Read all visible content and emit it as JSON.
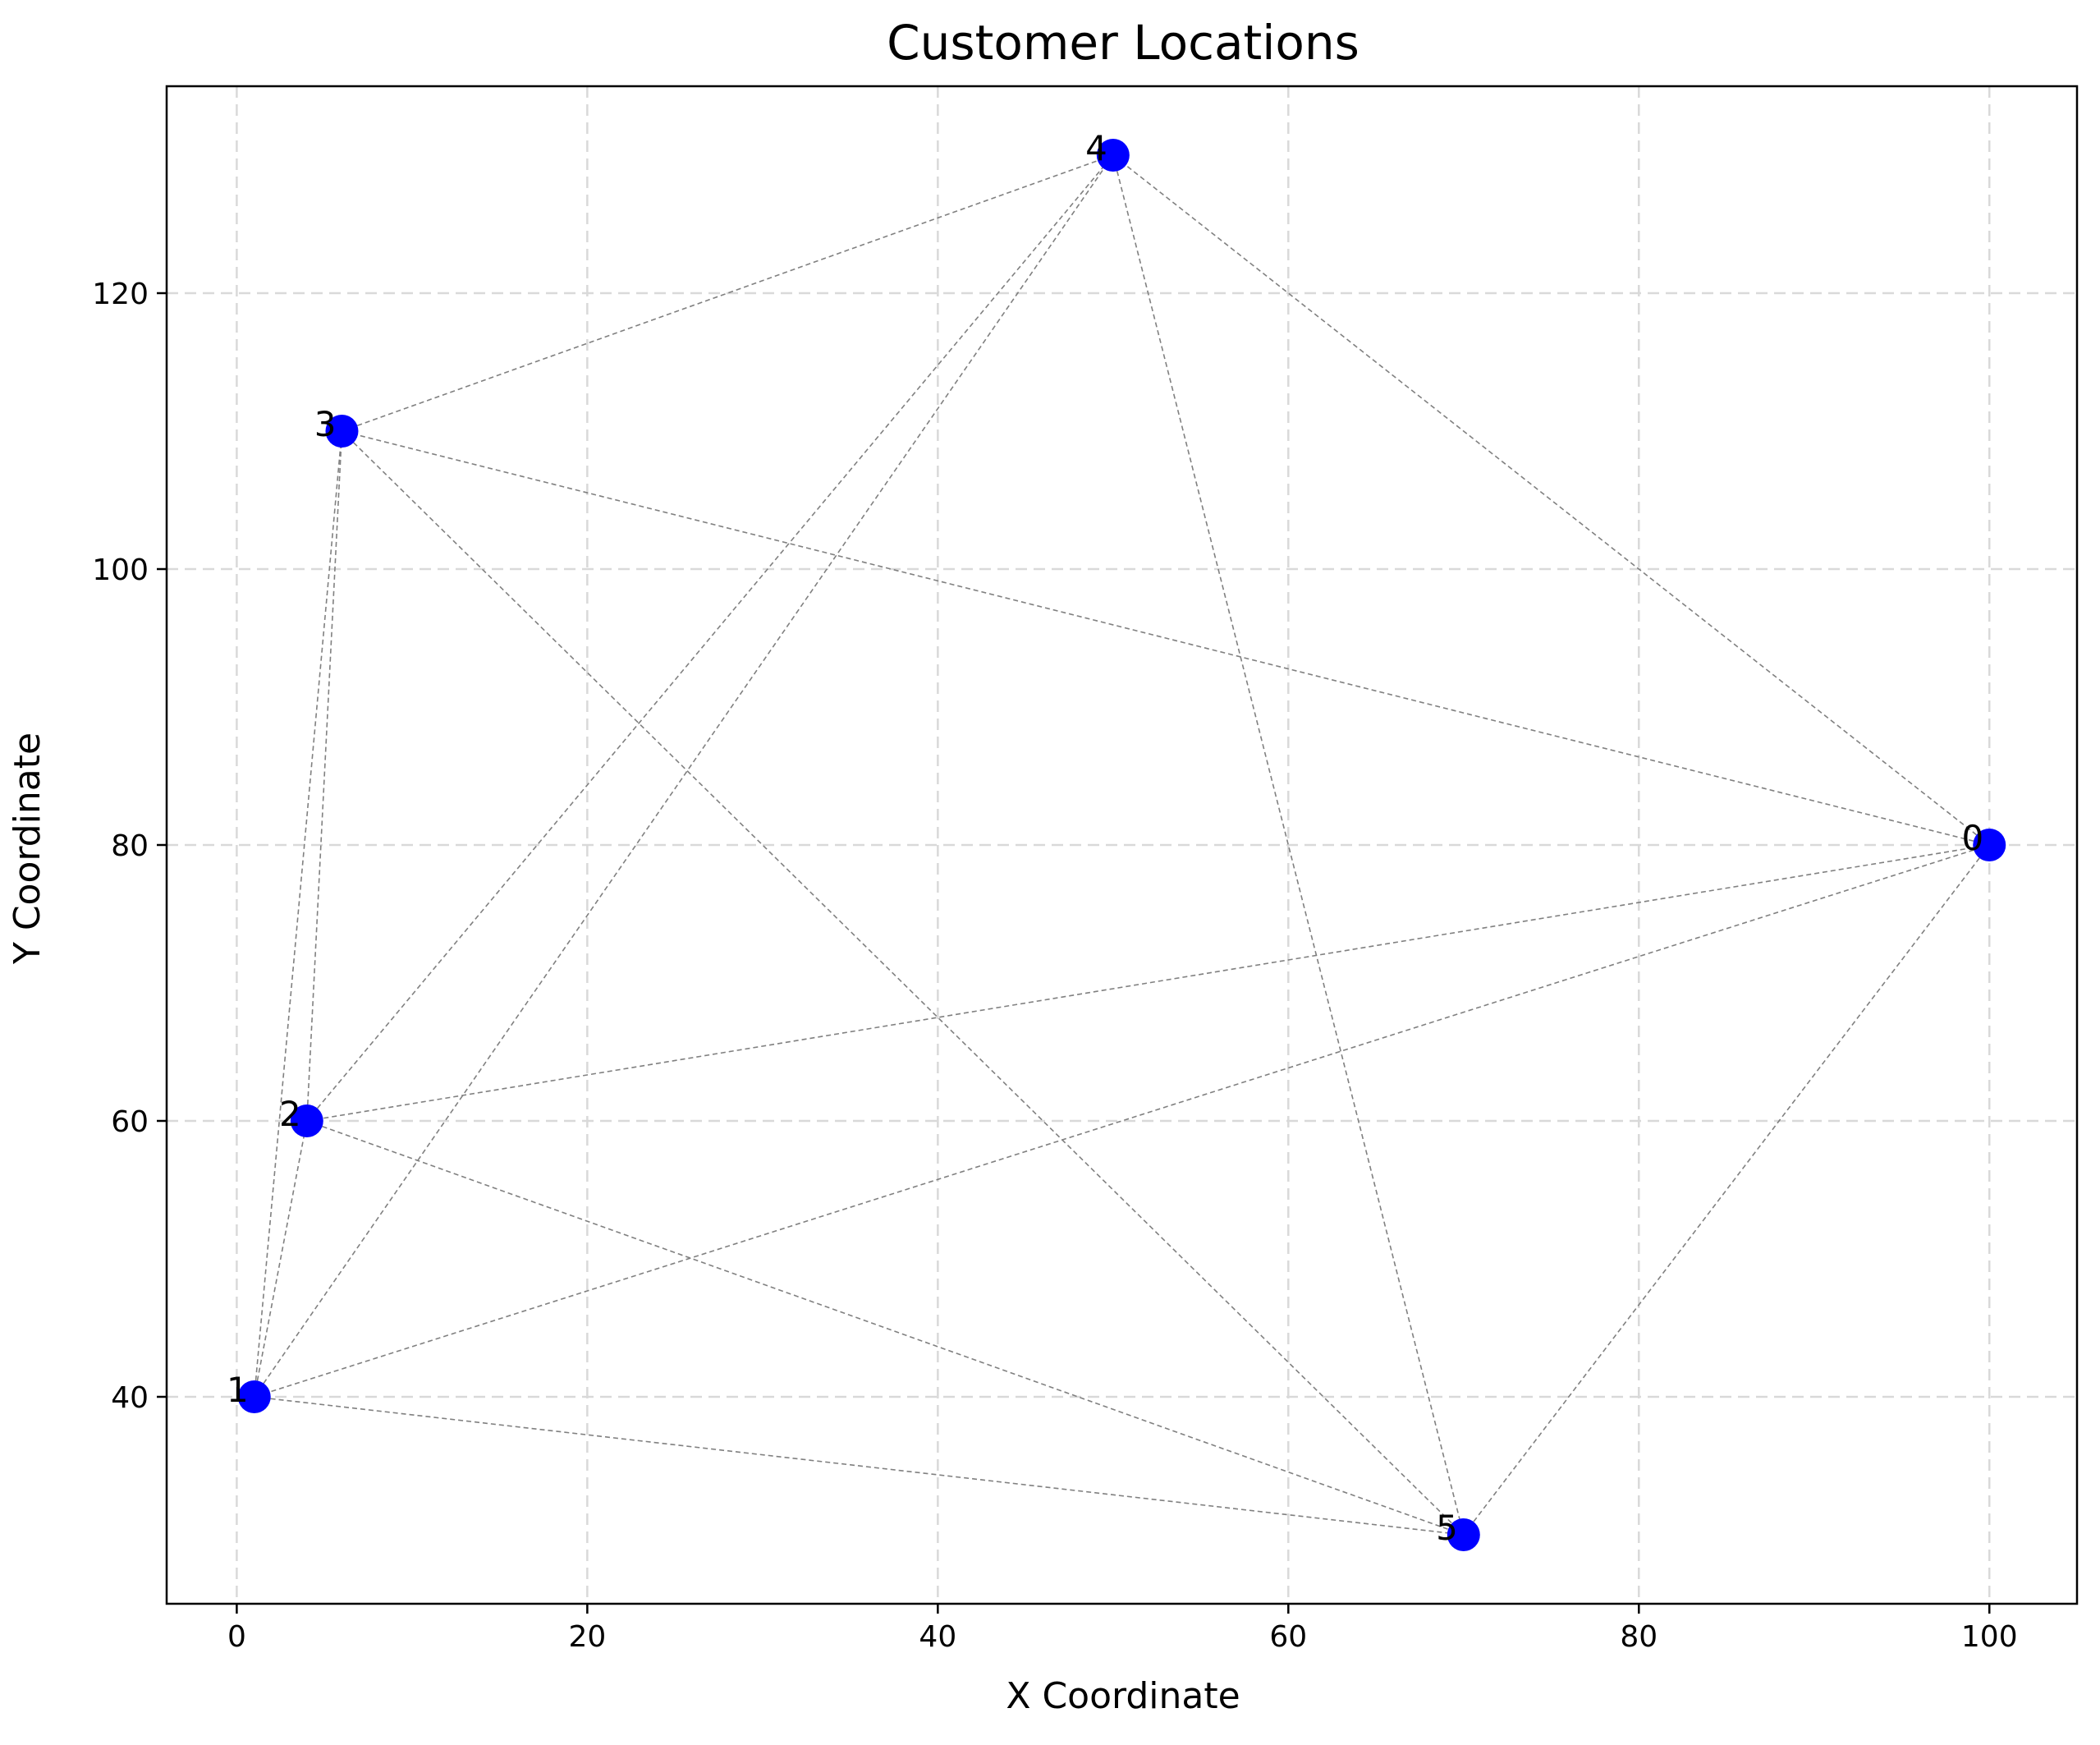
{
  "chart_data": {
    "type": "scatter",
    "title": "Customer Locations",
    "xlabel": "X Coordinate",
    "ylabel": "Y Coordinate",
    "xlim": [
      -4,
      105
    ],
    "ylim": [
      25,
      135
    ],
    "xticks": [
      0,
      20,
      40,
      60,
      80,
      100
    ],
    "yticks": [
      40,
      60,
      80,
      100,
      120
    ],
    "xtick_labels": [
      "0",
      "20",
      "40",
      "60",
      "80",
      "100"
    ],
    "ytick_labels": [
      "40",
      "60",
      "80",
      "100",
      "120"
    ],
    "grid": true,
    "colors": {
      "points": "#0000ff",
      "edges": "#808080",
      "grid": "#d9d9d9",
      "axes": "#000000"
    },
    "points": [
      {
        "label": "0",
        "x": 100,
        "y": 80
      },
      {
        "label": "1",
        "x": 1,
        "y": 40
      },
      {
        "label": "2",
        "x": 4,
        "y": 60
      },
      {
        "label": "3",
        "x": 6,
        "y": 110
      },
      {
        "label": "4",
        "x": 50,
        "y": 130
      },
      {
        "label": "5",
        "x": 70,
        "y": 30
      }
    ],
    "edges": [
      [
        "0",
        "1"
      ],
      [
        "0",
        "2"
      ],
      [
        "0",
        "3"
      ],
      [
        "0",
        "4"
      ],
      [
        "0",
        "5"
      ],
      [
        "1",
        "2"
      ],
      [
        "1",
        "3"
      ],
      [
        "1",
        "4"
      ],
      [
        "1",
        "5"
      ],
      [
        "2",
        "3"
      ],
      [
        "2",
        "4"
      ],
      [
        "2",
        "5"
      ],
      [
        "3",
        "4"
      ],
      [
        "3",
        "5"
      ],
      [
        "4",
        "5"
      ]
    ]
  }
}
